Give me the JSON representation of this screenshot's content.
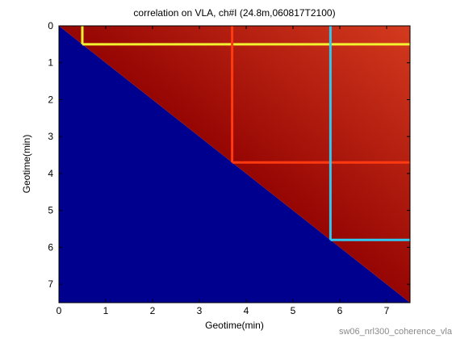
{
  "chart_data": {
    "type": "heatmap",
    "title": "correlation on VLA, ch#I (24.8m,060817T2100)",
    "xlabel": "Geotime(min)",
    "ylabel": "Geotime(min)",
    "xlim": [
      0,
      7.5
    ],
    "ylim": [
      7.5,
      0
    ],
    "x_reversed": false,
    "y_reversed": true,
    "xticks": [
      0,
      1,
      2,
      3,
      4,
      5,
      6,
      7
    ],
    "yticks": [
      0,
      1,
      2,
      3,
      4,
      5,
      6,
      7
    ],
    "colormap": "jet",
    "lower_triangle_color": "#00008f",
    "upper_triangle_colors": [
      "#b51f0a",
      "#8f0000",
      "#d43a1e"
    ],
    "marker_lines": [
      {
        "t": 0.5,
        "color": "#f2f230"
      },
      {
        "t": 3.7,
        "color": "#ff3a10"
      },
      {
        "t": 5.8,
        "color": "#30c8f0"
      }
    ],
    "grid": false
  },
  "footer_text": "sw06_nrl300_coherence_vla"
}
